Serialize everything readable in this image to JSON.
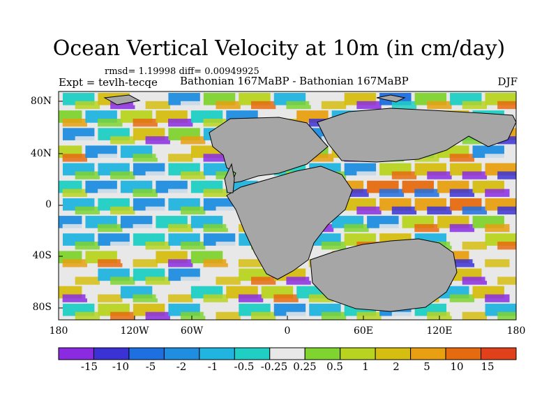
{
  "title": "Ocean Vertical Velocity at 10m (in cm/day)",
  "stats": "rmsd= 1.19998 diff= 0.00949925",
  "expt": "Expt = tevlh-tecqe",
  "subtitle": "Bathonian 167MaBP - Bathonian 167MaBP",
  "season": "DJF",
  "colors": {
    "land": "#a6a6a6",
    "coast": "#000000",
    "bins": [
      "#8a2be2",
      "#3b32d6",
      "#1e6fe0",
      "#1f8ee0",
      "#22b4e0",
      "#1fcfc4",
      "#e8e8e8",
      "#7fd430",
      "#b8d421",
      "#d6be10",
      "#e8a012",
      "#e66b10",
      "#e0401a"
    ]
  },
  "latitude_ticks": [
    "80N",
    "40N",
    "0",
    "40S",
    "80S"
  ],
  "longitude_ticks": [
    "180",
    "120W",
    "60W",
    "0",
    "60E",
    "120E",
    "180"
  ],
  "colorbar_labels": [
    "-15",
    "-10",
    "-5",
    "-2",
    "-1",
    "-0.5",
    "-0.25",
    "0.25",
    "0.5",
    "1",
    "2",
    "5",
    "10",
    "15"
  ]
}
